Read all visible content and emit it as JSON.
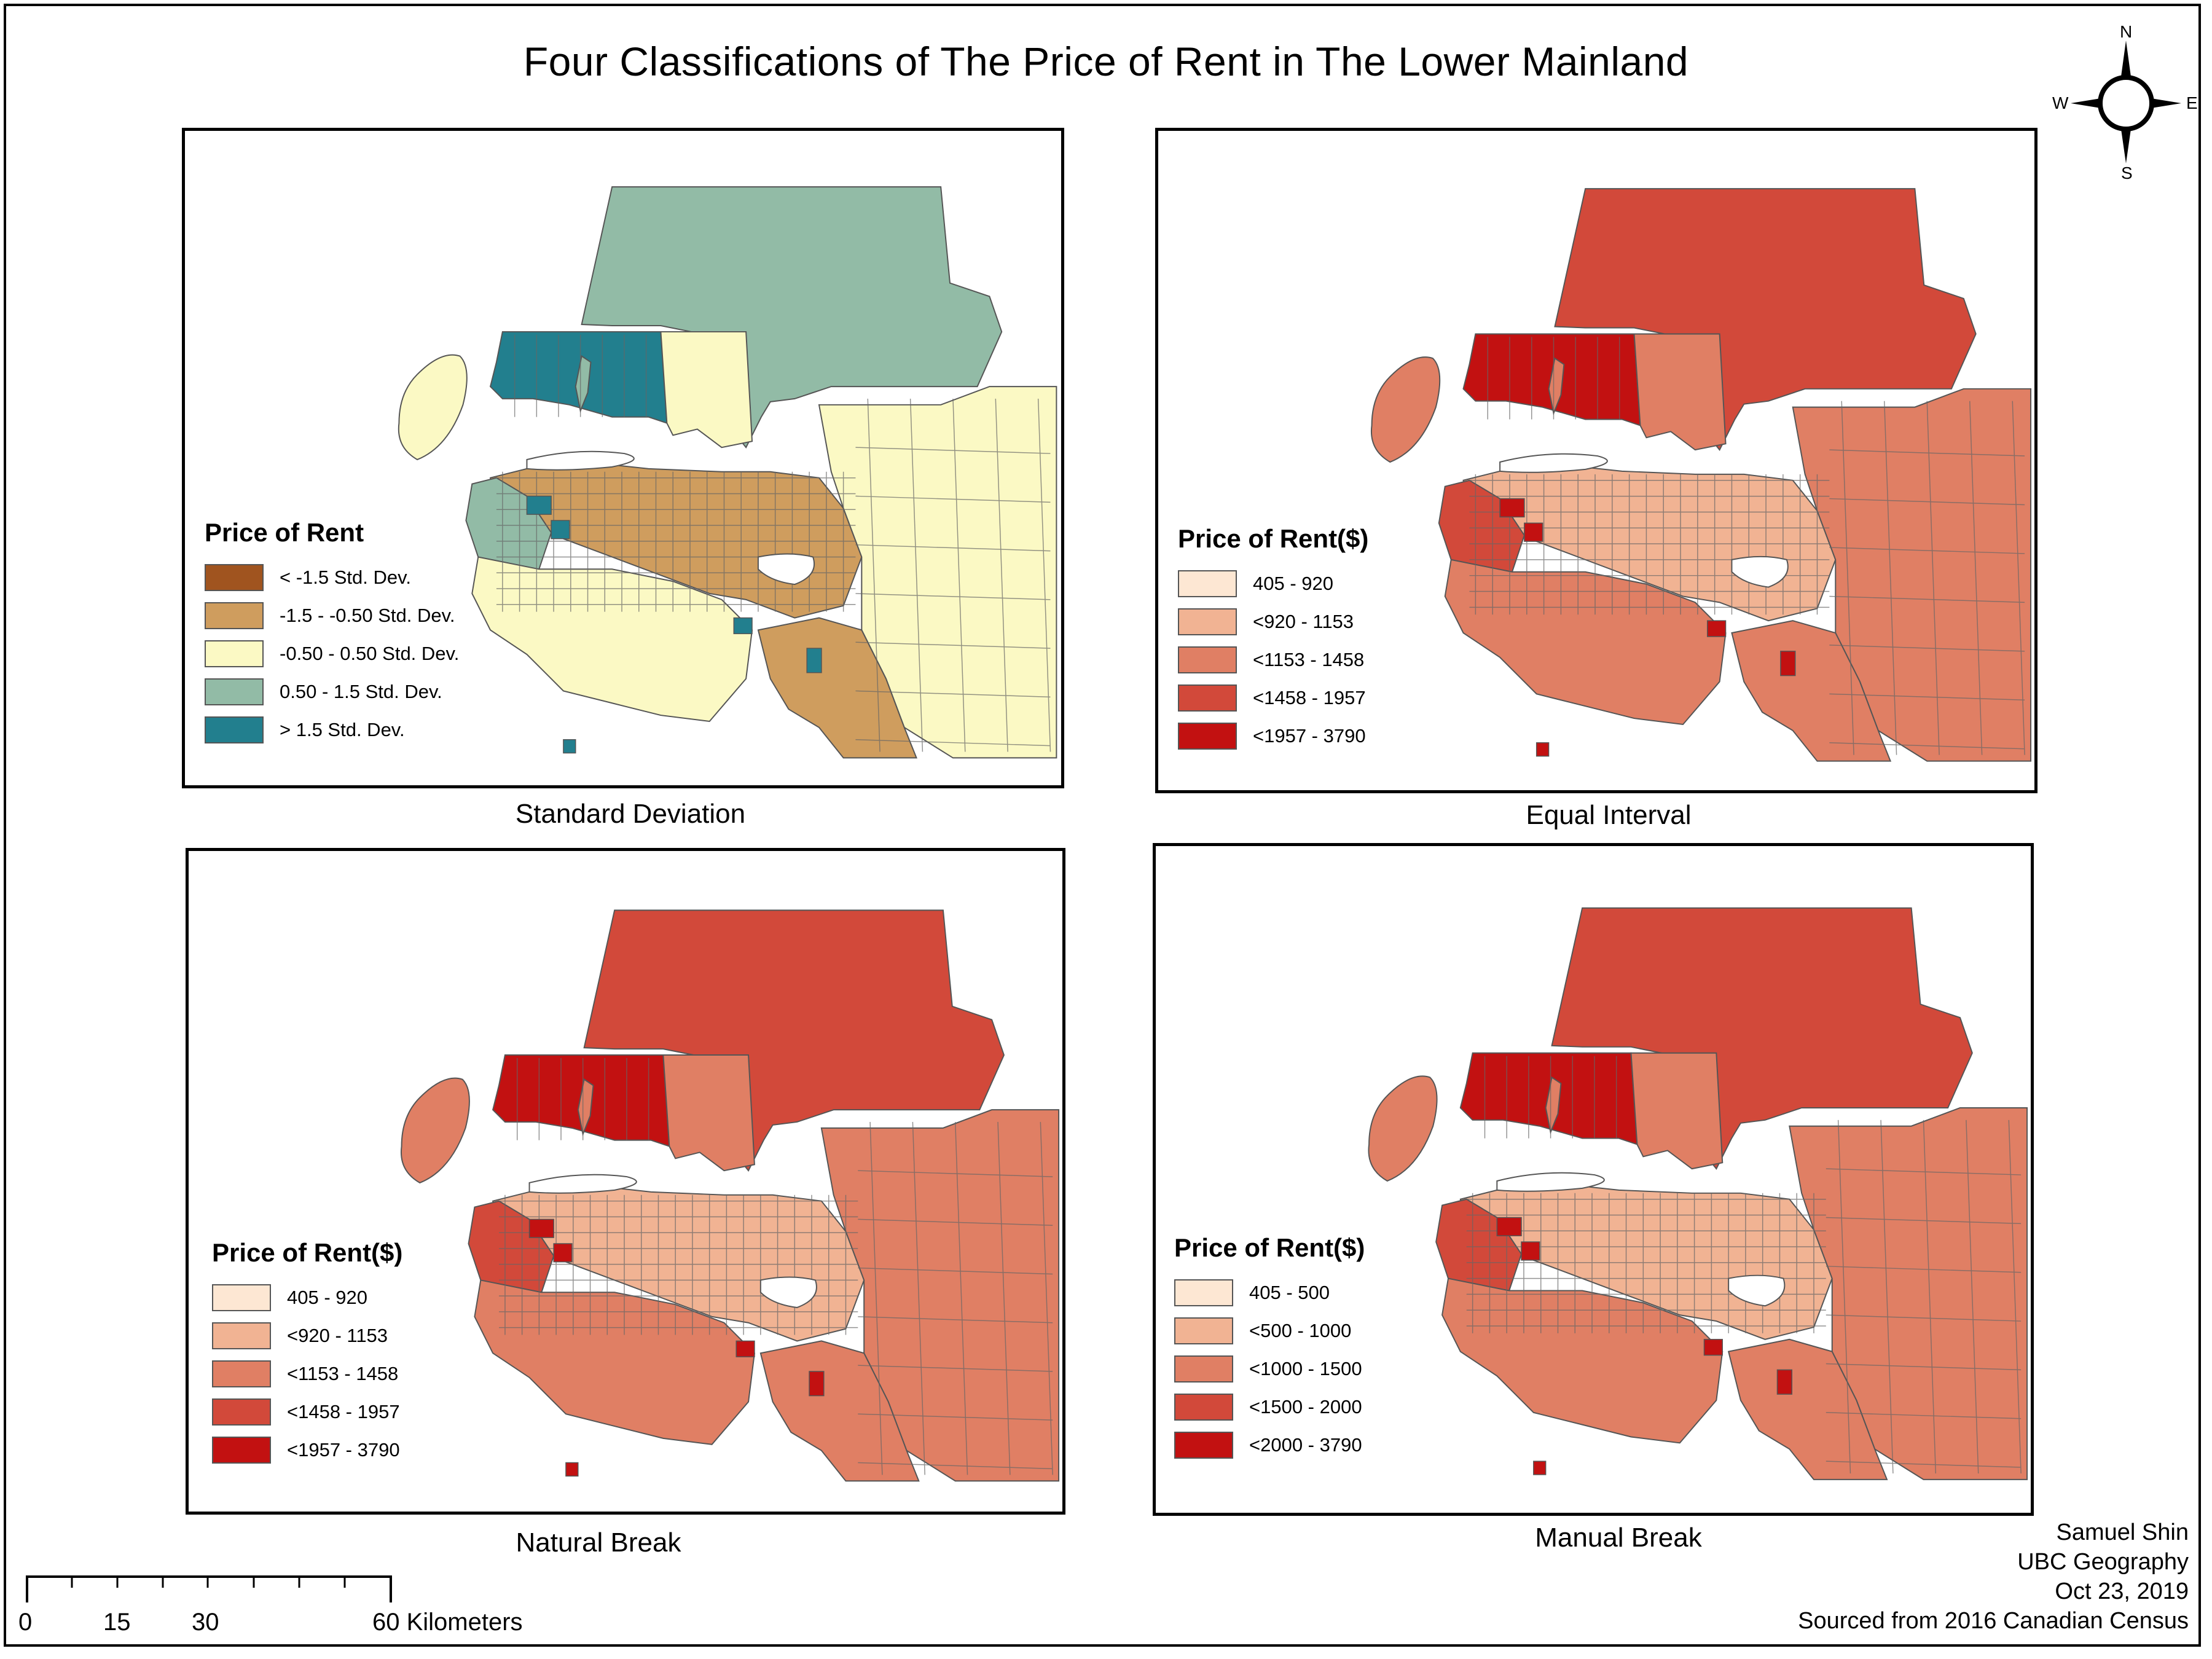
{
  "title": "Four Classifications of The Price of Rent in The Lower Mainland",
  "compass": {
    "n": "N",
    "s": "S",
    "e": "E",
    "w": "W",
    "icon": "north-arrow-icon"
  },
  "maps": [
    {
      "caption": "Standard Deviation",
      "legend_title": "Price of Rent",
      "classes": [
        {
          "label": "< -1.5 Std. Dev.",
          "color": "#a0541f"
        },
        {
          "label": "-1.5 - -0.50 Std. Dev.",
          "color": "#cf9d5e"
        },
        {
          "label": "-0.50 - 0.50 Std. Dev.",
          "color": "#fbf9c4"
        },
        {
          "label": "0.50 - 1.5 Std. Dev.",
          "color": "#92bba6"
        },
        {
          "label": "> 1.5 Std. Dev.",
          "color": "#227f8e"
        }
      ]
    },
    {
      "caption": "Equal Interval",
      "legend_title": "Price of Rent($)",
      "classes": [
        {
          "label": "405 - 920",
          "color": "#fde7d3"
        },
        {
          "label": "<920 - 1153",
          "color": "#f1b393"
        },
        {
          "label": "<1153 - 1458",
          "color": "#e07f64"
        },
        {
          "label": "<1458 - 1957",
          "color": "#d2493a"
        },
        {
          "label": "<1957 - 3790",
          "color": "#c21111"
        }
      ]
    },
    {
      "caption": "Natural Break",
      "legend_title": "Price of Rent($)",
      "classes": [
        {
          "label": "405 - 920",
          "color": "#fde7d3"
        },
        {
          "label": "<920 - 1153",
          "color": "#f1b393"
        },
        {
          "label": "<1153 - 1458",
          "color": "#e07f64"
        },
        {
          "label": "<1458 - 1957",
          "color": "#d2493a"
        },
        {
          "label": "<1957 - 3790",
          "color": "#c21111"
        }
      ]
    },
    {
      "caption": "Manual Break",
      "legend_title": "Price of Rent($)",
      "classes": [
        {
          "label": "405 - 500",
          "color": "#fde7d3"
        },
        {
          "label": "<500 - 1000",
          "color": "#f1b393"
        },
        {
          "label": "<1000 - 1500",
          "color": "#e07f64"
        },
        {
          "label": "<1500 - 2000",
          "color": "#d2493a"
        },
        {
          "label": "<2000 - 3790",
          "color": "#c21111"
        }
      ]
    }
  ],
  "scale_bar": {
    "ticks": [
      "0",
      "15",
      "30",
      "60 Kilometers"
    ]
  },
  "credits": {
    "author": "Samuel Shin",
    "org": "UBC Geography",
    "date": "Oct 23, 2019",
    "source": "Sourced from 2016 Canadian Census"
  }
}
